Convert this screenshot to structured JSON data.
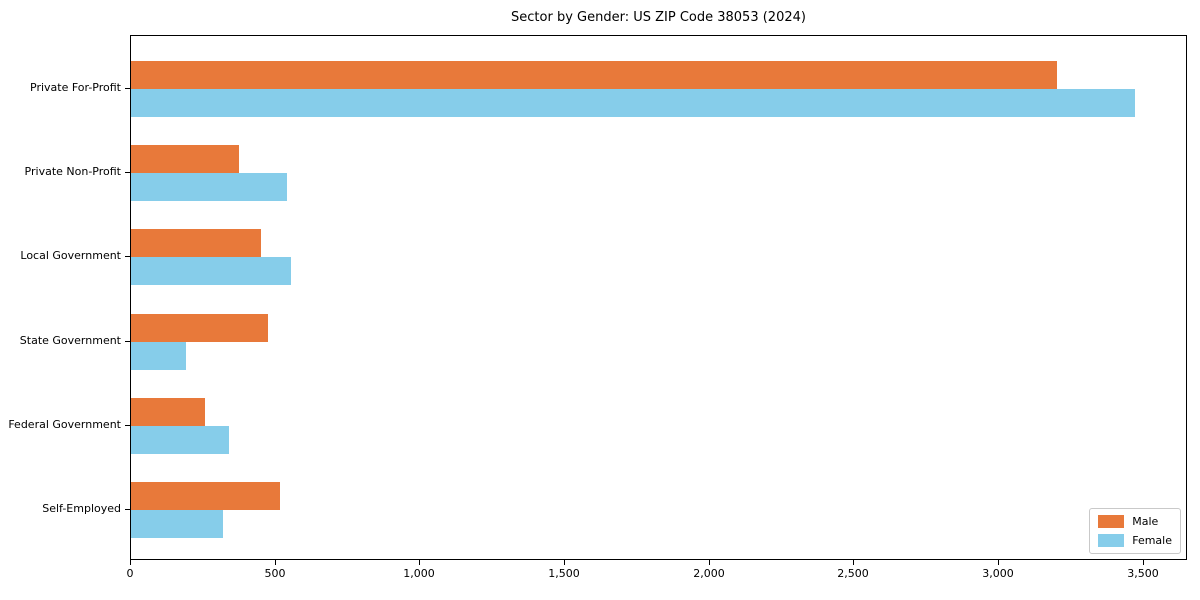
{
  "chart_data": {
    "type": "bar",
    "orientation": "horizontal",
    "title": "Sector by Gender: US ZIP Code 38053 (2024)",
    "categories": [
      "Private For-Profit",
      "Private Non-Profit",
      "Local Government",
      "State Government",
      "Federal Government",
      "Self-Employed"
    ],
    "series": [
      {
        "name": "Male",
        "color": "#e8793a",
        "values": [
          3205,
          375,
          450,
          475,
          255,
          515
        ]
      },
      {
        "name": "Female",
        "color": "#86cdea",
        "values": [
          3475,
          540,
          555,
          190,
          340,
          320
        ]
      }
    ],
    "xlabel": "",
    "ylabel": "",
    "xlim": [
      0,
      3650
    ],
    "xticks": [
      0,
      500,
      1000,
      1500,
      2000,
      2500,
      3000,
      3500
    ],
    "xtick_labels": [
      "0",
      "500",
      "1,000",
      "1,500",
      "2,000",
      "2,500",
      "3,000",
      "3,500"
    ],
    "legend": {
      "position": "lower right"
    },
    "grid": false,
    "colors": {
      "spine": "#000000",
      "background": "#ffffff",
      "text": "#000000"
    }
  }
}
